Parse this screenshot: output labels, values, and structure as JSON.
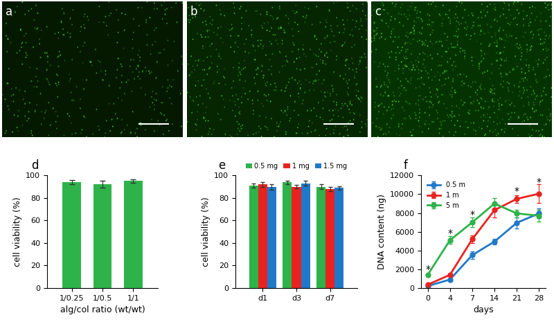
{
  "images": [
    {
      "label": "a"
    },
    {
      "label": "b"
    },
    {
      "label": "c"
    }
  ],
  "chart_data": [
    {
      "type": "bar",
      "title": "d",
      "xlabel": "alg/col ratio (wt/wt)",
      "ylabel": "cell viability (%)",
      "categories": [
        "1/0.25",
        "1/0.5",
        "1/1"
      ],
      "values": [
        94,
        92,
        95
      ],
      "errors": [
        2,
        3,
        1.5
      ],
      "color": "#2db34a",
      "ylim": [
        0,
        100
      ],
      "yticks": [
        0,
        20,
        40,
        60,
        80,
        100
      ]
    },
    {
      "type": "bar",
      "title": "e",
      "ylabel": "cell viability (%)",
      "categories": [
        "d1",
        "d3",
        "d7"
      ],
      "series": [
        {
          "name": "0.5 mg",
          "color": "#2db34a",
          "values": [
            91,
            94,
            90
          ],
          "errors": [
            2,
            1.5,
            2
          ]
        },
        {
          "name": "1 mg",
          "color": "#e8231f",
          "values": [
            92,
            90,
            88
          ],
          "errors": [
            2,
            1.5,
            2
          ]
        },
        {
          "name": "1.5 mg",
          "color": "#1f78c8",
          "values": [
            90,
            93,
            89
          ],
          "errors": [
            2.5,
            2,
            1.5
          ]
        }
      ],
      "legend": "top",
      "ylim": [
        0,
        100
      ],
      "yticks": [
        0,
        20,
        40,
        60,
        80,
        100
      ]
    },
    {
      "type": "line",
      "title": "f",
      "xlabel": "days",
      "ylabel": "DNA content (ng)",
      "categories": [
        "0",
        "4",
        "7",
        "14",
        "21",
        "28"
      ],
      "series": [
        {
          "name": "0.5 m",
          "color": "#1f78c8",
          "marker": "o",
          "values": [
            200,
            900,
            3500,
            4950,
            6950,
            7950
          ],
          "errors": [
            50,
            100,
            400,
            300,
            600,
            500
          ]
        },
        {
          "name": "1 m",
          "color": "#e8231f",
          "marker": "o",
          "values": [
            350,
            1400,
            5200,
            8300,
            9500,
            10050
          ],
          "errors": [
            100,
            100,
            400,
            800,
            400,
            1000
          ]
        },
        {
          "name": "5 m",
          "color": "#2db34a",
          "marker": "o",
          "values": [
            1400,
            5100,
            7000,
            9000,
            7950,
            7700
          ],
          "errors": [
            150,
            400,
            500,
            600,
            400,
            600
          ]
        }
      ],
      "annotations": [
        {
          "text": "*",
          "x": "0",
          "y": 2000
        },
        {
          "text": "*",
          "x": "4",
          "y": 5800
        },
        {
          "text": "*",
          "x": "7",
          "y": 7800
        },
        {
          "text": "*",
          "x": "21",
          "y": 10300
        },
        {
          "text": "*",
          "x": "28",
          "y": 11300
        }
      ],
      "legend": "upper left",
      "ylim": [
        0,
        12000
      ],
      "yticks": [
        0,
        2000,
        4000,
        6000,
        8000,
        10000,
        12000
      ]
    }
  ]
}
